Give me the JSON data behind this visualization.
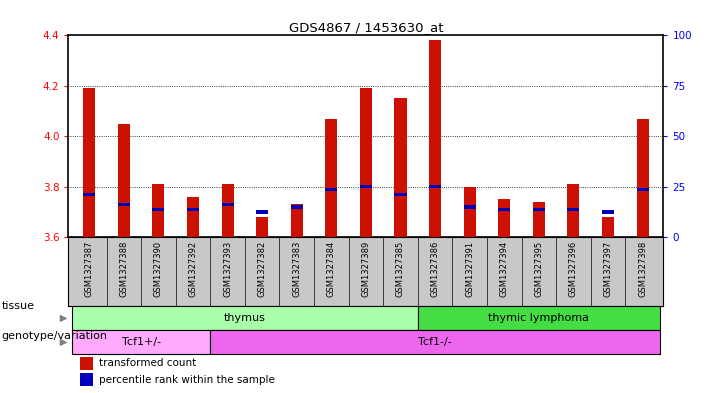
{
  "title": "GDS4867 / 1453630_at",
  "samples": [
    "GSM1327387",
    "GSM1327388",
    "GSM1327390",
    "GSM1327392",
    "GSM1327393",
    "GSM1327382",
    "GSM1327383",
    "GSM1327384",
    "GSM1327389",
    "GSM1327385",
    "GSM1327386",
    "GSM1327391",
    "GSM1327394",
    "GSM1327395",
    "GSM1327396",
    "GSM1327397",
    "GSM1327398"
  ],
  "red_values": [
    4.19,
    4.05,
    3.81,
    3.76,
    3.81,
    3.68,
    3.73,
    4.07,
    4.19,
    4.15,
    4.38,
    3.8,
    3.75,
    3.74,
    3.81,
    3.68,
    4.07
  ],
  "blue_values": [
    3.77,
    3.73,
    3.71,
    3.71,
    3.73,
    3.7,
    3.72,
    3.79,
    3.8,
    3.77,
    3.8,
    3.72,
    3.71,
    3.71,
    3.71,
    3.7,
    3.79
  ],
  "ymin": 3.6,
  "ymax": 4.4,
  "yticks_left": [
    3.6,
    3.8,
    4.0,
    4.2,
    4.4
  ],
  "yticks_right": [
    0,
    25,
    50,
    75,
    100
  ],
  "dotted_lines": [
    3.8,
    4.0,
    4.2
  ],
  "tissue_groups": [
    {
      "label": "thymus",
      "start": 0,
      "end": 10,
      "color": "#AAFFAA"
    },
    {
      "label": "thymic lymphoma",
      "start": 10,
      "end": 17,
      "color": "#44DD44"
    }
  ],
  "genotype_groups": [
    {
      "label": "Tcf1+/-",
      "start": 0,
      "end": 4,
      "color": "#FFAAFF"
    },
    {
      "label": "Tcf1-/-",
      "start": 4,
      "end": 17,
      "color": "#EE66EE"
    }
  ],
  "tissue_row_label": "tissue",
  "genotype_row_label": "genotype/variation",
  "legend_red": "transformed count",
  "legend_blue": "percentile rank within the sample",
  "bar_width": 0.35,
  "red_color": "#CC1100",
  "blue_color": "#0000BB",
  "bg_color": "#FFFFFF",
  "label_area_bg": "#C8C8C8",
  "n_samples": 17
}
